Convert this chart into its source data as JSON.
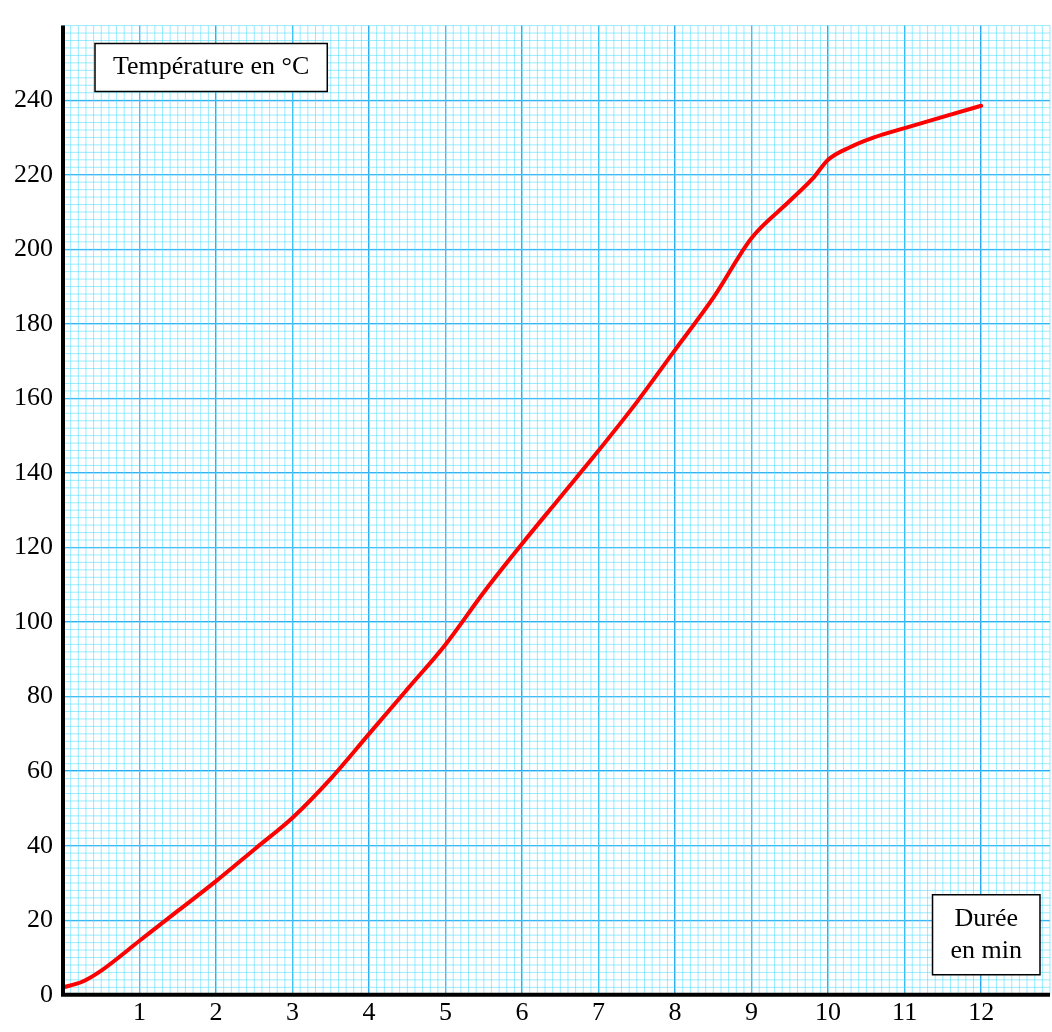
{
  "chart_data": {
    "type": "line",
    "xlabel": "Durée\nen min",
    "ylabel": "Température en °C",
    "x": [
      0,
      0.25,
      0.5,
      1,
      1.5,
      2,
      2.5,
      3,
      3.5,
      4,
      4.5,
      5,
      5.5,
      6,
      6.5,
      7,
      7.5,
      8,
      8.5,
      9,
      9.5,
      9.8,
      10,
      10.3,
      10.6,
      11,
      11.5,
      12
    ],
    "series": [
      {
        "color": "#ff0000",
        "values": [
          2,
          3.5,
          6.5,
          14.5,
          22.5,
          30.5,
          39,
          47.5,
          58,
          70,
          82,
          94,
          108,
          121,
          133.5,
          146,
          159,
          173,
          187,
          203,
          213,
          219,
          224,
          227.5,
          230,
          232.5,
          235.5,
          238.5
        ]
      }
    ],
    "xlim": [
      0,
      12.9
    ],
    "ylim": [
      0,
      260
    ],
    "xticks": [
      {
        "value": 0,
        "label": null
      },
      1,
      2,
      3,
      4,
      5,
      6,
      7,
      8,
      9,
      10,
      11,
      12
    ],
    "yticks": [
      0,
      20,
      40,
      60,
      80,
      100,
      120,
      140,
      160,
      180,
      200,
      220,
      240
    ],
    "grid": true,
    "marker": "none",
    "line_style": "solid",
    "legend": false
  }
}
